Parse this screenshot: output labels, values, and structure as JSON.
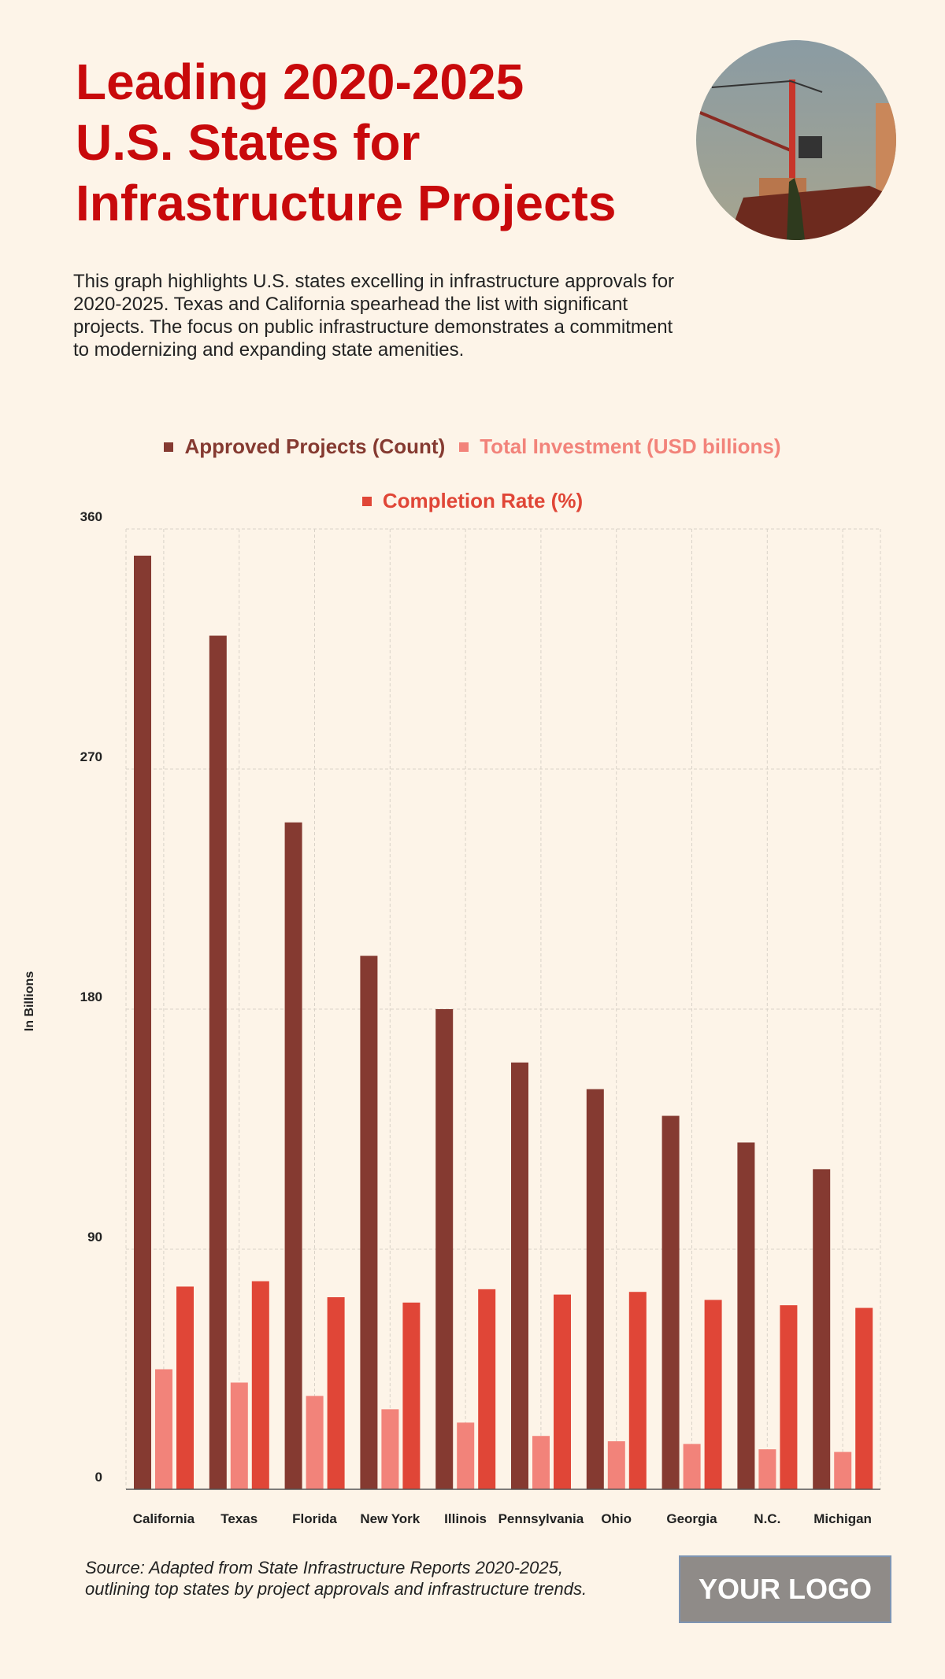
{
  "header": {
    "title_lines": [
      "Leading 2020-2025",
      "U.S. States for",
      "Infrastructure Projects"
    ],
    "description": "This graph highlights U.S. states excelling in infrastructure approvals for 2020-2025. Texas and California spearhead the list with significant projects. The focus on public infrastructure demonstrates a commitment to modernizing and expanding state amenities.",
    "photo_icon": "construction-crane-photo"
  },
  "colors": {
    "background": "#fdf4e8",
    "title": "#c8090b",
    "approved": "#853a31",
    "investment": "#f2837a",
    "completion": "#e04637"
  },
  "chart_data": {
    "type": "bar",
    "ylabel": "In Billions",
    "ylim": [
      0,
      360
    ],
    "yticks": [
      0,
      90,
      180,
      270,
      360
    ],
    "grid": true,
    "legend_position": "top",
    "categories": [
      "California",
      "Texas",
      "Florida",
      "New York",
      "Illinois",
      "Pennsylvania",
      "Ohio",
      "Georgia",
      "N.C.",
      "Michigan"
    ],
    "series": [
      {
        "name": "Approved Projects (Count)",
        "color": "#853a31",
        "values": [
          350,
          320,
          250,
          200,
          180,
          160,
          150,
          140,
          130,
          120
        ]
      },
      {
        "name": "Total Investment (USD billions)",
        "color": "#f2837a",
        "values": [
          45,
          40,
          35,
          30,
          25,
          20,
          18,
          17,
          15,
          14
        ]
      },
      {
        "name": "Completion Rate (%)",
        "color": "#e04637",
        "values": [
          76,
          78,
          72,
          70,
          75,
          73,
          74,
          71,
          69,
          68
        ]
      }
    ]
  },
  "footer": {
    "source": "Source: Adapted from State Infrastructure Reports 2020-2025, outlining top states by project approvals and infrastructure trends.",
    "logo": "YOUR LOGO"
  }
}
